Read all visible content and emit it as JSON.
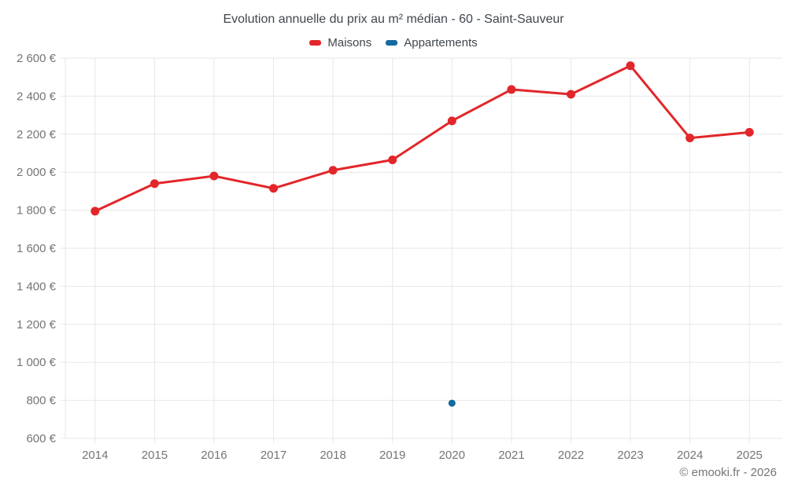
{
  "title": "Evolution annuelle du prix au m² médian - 60 - Saint-Sauveur",
  "legend": {
    "items": [
      {
        "label": "Maisons",
        "color": "#e2262a"
      },
      {
        "label": "Appartements",
        "color": "#146b9e"
      }
    ]
  },
  "footer": {
    "attribution": "© emooki.fr - 2026"
  },
  "colors": {
    "background": "#ffffff",
    "grid": "#e7e7e7",
    "tick_text": "#757575",
    "title_text": "#3f474e",
    "maisons": "#e2262a",
    "appartements": "#146b9e"
  },
  "chart_data": {
    "type": "line",
    "title": "Evolution annuelle du prix au m² médian - 60 - Saint-Sauveur",
    "categories": [
      "2014",
      "2015",
      "2016",
      "2017",
      "2018",
      "2019",
      "2020",
      "2021",
      "2022",
      "2023",
      "2024",
      "2025"
    ],
    "series": [
      {
        "name": "Maisons",
        "color": "#e2262a",
        "style": "line-with-points",
        "values": [
          1795,
          1940,
          1980,
          1915,
          2010,
          2065,
          2270,
          2435,
          2410,
          2560,
          2180,
          2210
        ]
      },
      {
        "name": "Appartements",
        "color": "#146b9e",
        "style": "points-only",
        "values": [
          null,
          null,
          null,
          null,
          null,
          null,
          785,
          null,
          null,
          null,
          null,
          null
        ]
      }
    ],
    "ylim": [
      600,
      2600
    ],
    "ytick_step": 200,
    "ytick_labels": [
      "600 €",
      "800 €",
      "1 000 €",
      "1 200 €",
      "1 400 €",
      "1 600 €",
      "1 800 €",
      "2 000 €",
      "2 200 €",
      "2 400 €",
      "2 600 €"
    ],
    "ylabel": "",
    "xlabel": "",
    "grid": true,
    "legend_position": "top"
  }
}
